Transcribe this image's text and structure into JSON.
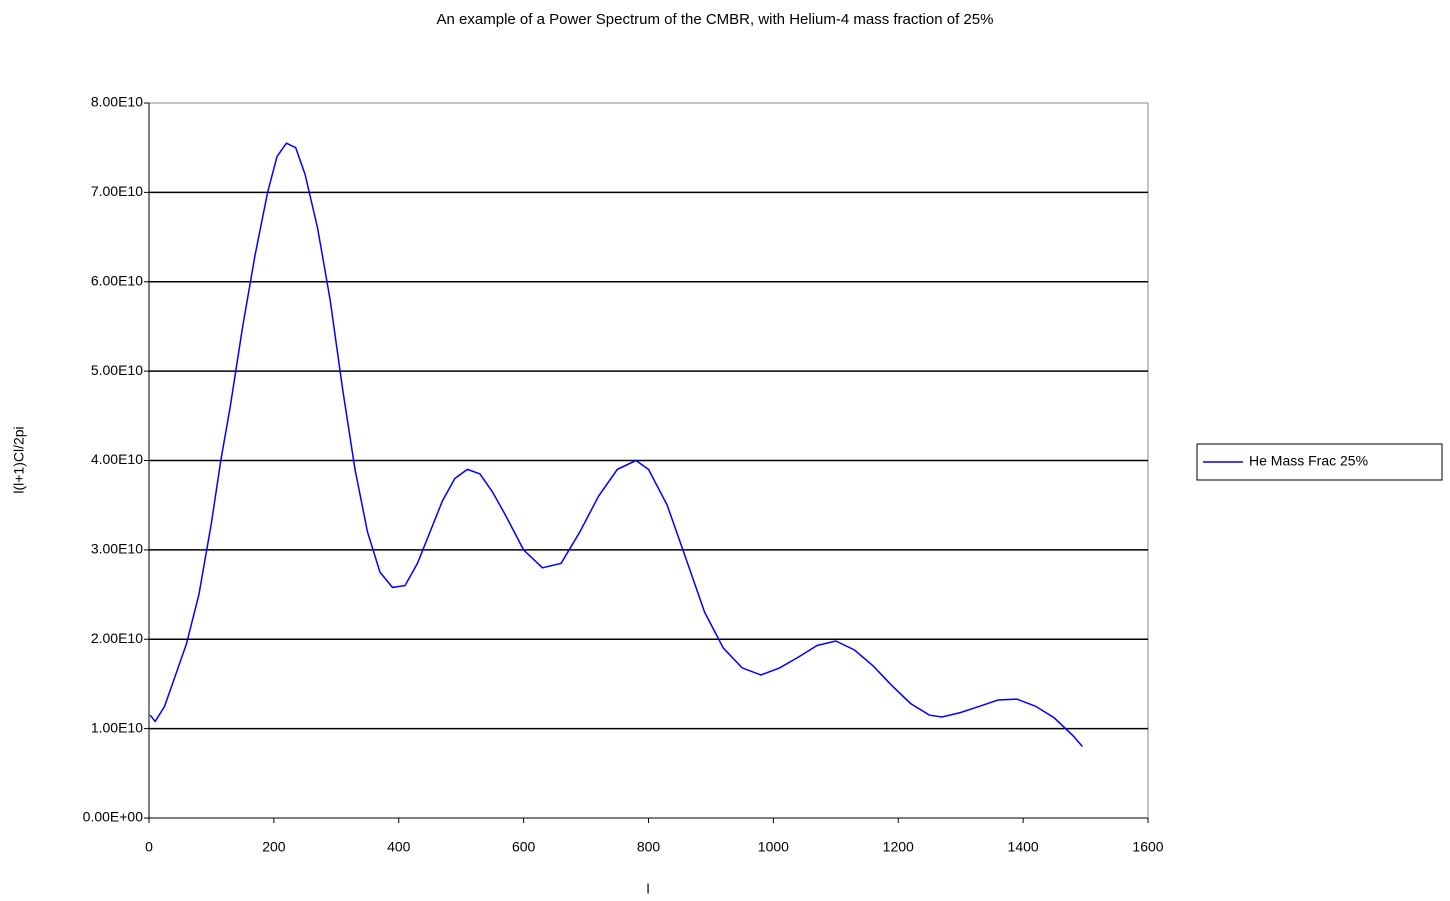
{
  "chart_data": {
    "type": "line",
    "title": "An example of a Power Spectrum of the CMBR, with Helium-4 mass fraction of 25%",
    "x_label": "l",
    "y_label": "l(l+1)Cl/2pi",
    "xlim": [
      0,
      1600
    ],
    "xticks": [
      0,
      200,
      400,
      600,
      800,
      1000,
      1200,
      1400,
      1600
    ],
    "ylim": [
      0,
      80000000000.0
    ],
    "yticks": [
      {
        "value": 0,
        "label": "0.00E+00"
      },
      {
        "value": 10000000000.0,
        "label": "1.00E10"
      },
      {
        "value": 20000000000.0,
        "label": "2.00E10"
      },
      {
        "value": 30000000000.0,
        "label": "3.00E10"
      },
      {
        "value": 40000000000.0,
        "label": "4.00E10"
      },
      {
        "value": 50000000000.0,
        "label": "5.00E10"
      },
      {
        "value": 60000000000.0,
        "label": "6.00E10"
      },
      {
        "value": 70000000000.0,
        "label": "7.00E10"
      },
      {
        "value": 80000000000.0,
        "label": "8.00E10"
      }
    ],
    "grid": true,
    "legend": "right",
    "x": [
      2,
      10,
      25,
      40,
      60,
      80,
      100,
      115,
      130,
      150,
      170,
      190,
      205,
      220,
      235,
      250,
      270,
      290,
      310,
      330,
      350,
      370,
      390,
      410,
      430,
      450,
      470,
      490,
      510,
      530,
      550,
      570,
      600,
      630,
      660,
      690,
      720,
      750,
      780,
      800,
      830,
      860,
      890,
      920,
      950,
      980,
      1010,
      1040,
      1070,
      1100,
      1130,
      1160,
      1190,
      1220,
      1250,
      1270,
      1300,
      1330,
      1360,
      1390,
      1420,
      1450,
      1480,
      1495
    ],
    "series": [
      {
        "name": "He Mass Frac 25%",
        "color": "#0000ff",
        "values": [
          11500000000.0,
          10800000000.0,
          12500000000.0,
          15500000000.0,
          19500000000.0,
          25000000000.0,
          33000000000.0,
          40000000000.0,
          46000000000.0,
          55000000000.0,
          63000000000.0,
          70000000000.0,
          74000000000.0,
          75500000000.0,
          75000000000.0,
          72000000000.0,
          66000000000.0,
          58000000000.0,
          48000000000.0,
          39000000000.0,
          32000000000.0,
          27500000000.0,
          25800000000.0,
          26000000000.0,
          28500000000.0,
          32000000000.0,
          35500000000.0,
          38000000000.0,
          39000000000.0,
          38500000000.0,
          36500000000.0,
          34000000000.0,
          30000000000.0,
          28000000000.0,
          28500000000.0,
          32000000000.0,
          36000000000.0,
          39000000000.0,
          40000000000.0,
          39000000000.0,
          35000000000.0,
          29000000000.0,
          23000000000.0,
          19000000000.0,
          16800000000.0,
          16000000000.0,
          16800000000.0,
          18000000000.0,
          19300000000.0,
          19800000000.0,
          18800000000.0,
          17000000000.0,
          14800000000.0,
          12800000000.0,
          11500000000.0,
          11300000000.0,
          11800000000.0,
          12500000000.0,
          13200000000.0,
          13300000000.0,
          12500000000.0,
          11200000000.0,
          9200000000.0,
          8000000000.0
        ]
      }
    ]
  }
}
